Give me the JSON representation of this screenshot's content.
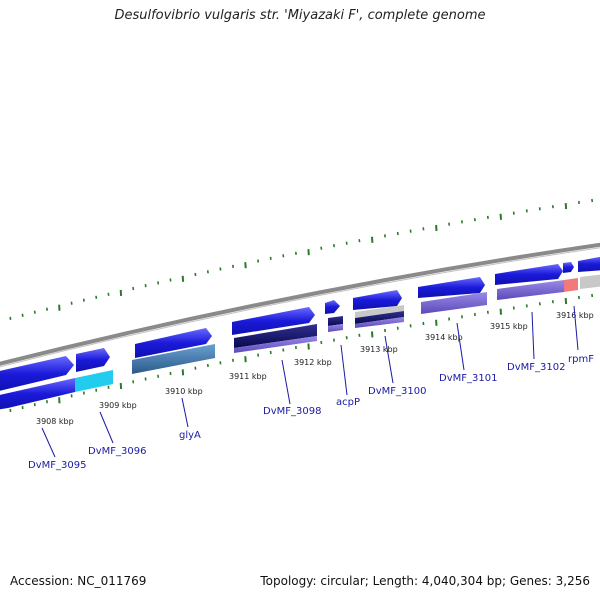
{
  "title": "Desulfovibrio vulgaris str. 'Miyazaki F', complete genome",
  "footer": {
    "accession": "Accession: NC_011769",
    "summary": "Topology: circular; Length: 4,040,304 bp; Genes: 3,256"
  },
  "colors": {
    "forward_gene": "#1a1ad9",
    "gene_highlight": "#5a5aff",
    "backbone": "#8a8a8a",
    "tick_green": "#2a7a2a",
    "label_blue": "#1a1aa6",
    "cyan_block": "#22ccee",
    "steel_block": "#4a80b0",
    "navy_block": "#101070",
    "lavender_block": "#7a6ad0",
    "salmon_block": "#f07a7a",
    "grey_block": "#c8c8c8"
  },
  "kbp_ticks": [
    "3908 kbp",
    "3909 kbp",
    "3910 kbp",
    "3911 kbp",
    "3912 kbp",
    "3913 kbp",
    "3914 kbp",
    "3915 kbp",
    "3916 kbp"
  ],
  "genes": [
    {
      "label": "DvMF_3095",
      "icon": "gene-arrow"
    },
    {
      "label": "DvMF_3096",
      "icon": "gene-arrow"
    },
    {
      "label": "glyA",
      "icon": "gene-arrow"
    },
    {
      "label": "DvMF_3098",
      "icon": "gene-arrow"
    },
    {
      "label": "acpP",
      "icon": "gene-arrow"
    },
    {
      "label": "DvMF_3100",
      "icon": "gene-arrow"
    },
    {
      "label": "DvMF_3101",
      "icon": "gene-arrow"
    },
    {
      "label": "DvMF_3102",
      "icon": "gene-arrow"
    },
    {
      "label": "rpmF",
      "icon": "gene-arrow"
    }
  ]
}
